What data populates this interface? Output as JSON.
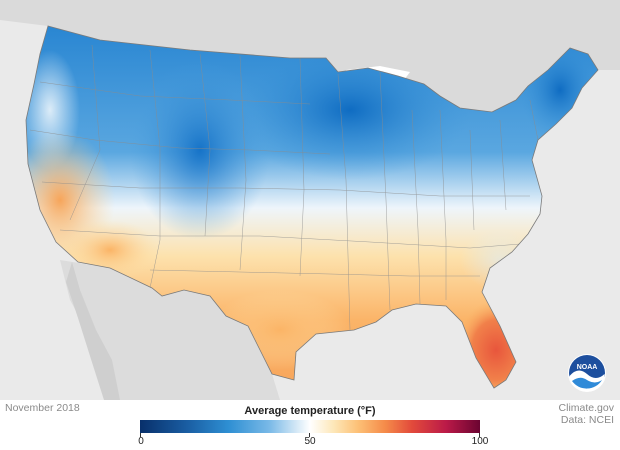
{
  "map": {
    "date_label": "November 2018",
    "credit_line_1": "Climate.gov",
    "credit_line_2": "Data: NCEI",
    "logo_text": "NOAA"
  },
  "legend": {
    "title": "Average temperature (°F)",
    "ticks": [
      "0",
      "50",
      "100"
    ],
    "range": [
      0,
      100
    ],
    "colors": [
      "#08306b",
      "#2e8fd3",
      "#ffffff",
      "#fdc177",
      "#e24a3b",
      "#6b0431"
    ]
  }
}
